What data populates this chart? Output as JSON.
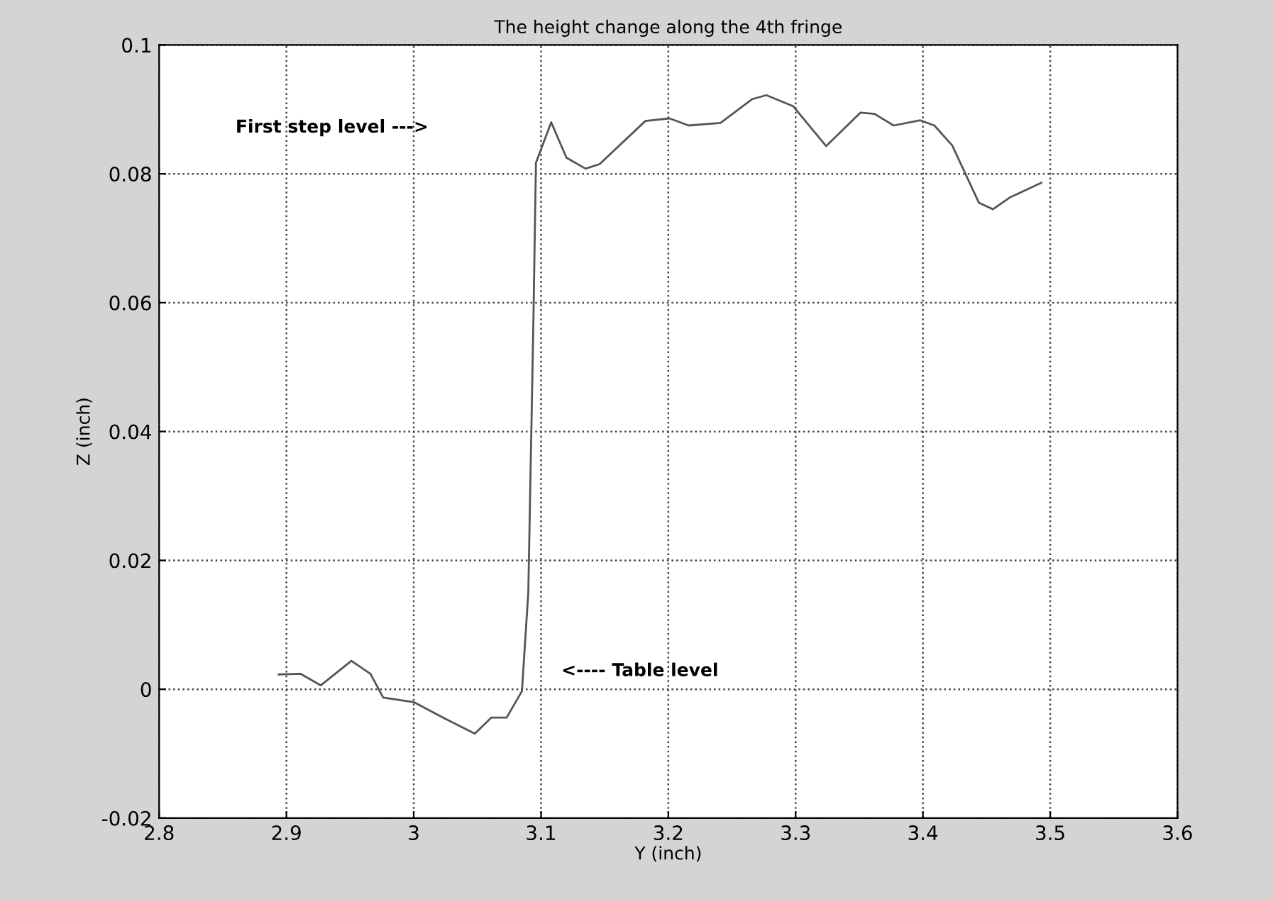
{
  "chart_data": {
    "type": "line",
    "title": "The height change along the 4th fringe",
    "xlabel": "Y (inch)",
    "ylabel": "Z (inch)",
    "x": [
      2.894,
      2.911,
      2.927,
      2.951,
      2.966,
      2.976,
      3.0,
      3.025,
      3.048,
      3.061,
      3.073,
      3.085,
      3.09,
      3.094,
      3.096,
      3.108,
      3.12,
      3.135,
      3.146,
      3.182,
      3.201,
      3.216,
      3.241,
      3.266,
      3.277,
      3.298,
      3.324,
      3.351,
      3.362,
      3.377,
      3.398,
      3.409,
      3.423,
      3.444,
      3.455,
      3.468,
      3.493
    ],
    "series": [
      {
        "color": "#555555",
        "values": [
          0.0023,
          0.0024,
          0.0006,
          0.0044,
          0.0024,
          -0.0013,
          -0.002,
          -0.0046,
          -0.0069,
          -0.0044,
          -0.0044,
          -0.0003,
          0.015,
          0.057,
          0.0817,
          0.088,
          0.0825,
          0.0808,
          0.0815,
          0.0882,
          0.0886,
          0.0875,
          0.0879,
          0.0916,
          0.0922,
          0.0905,
          0.0843,
          0.0895,
          0.0893,
          0.0875,
          0.0883,
          0.0875,
          0.0844,
          0.0755,
          0.0745,
          0.0763,
          0.0786
        ]
      }
    ],
    "xlim": [
      2.8,
      3.6
    ],
    "xticks": [
      2.8,
      2.9,
      3,
      3.1,
      3.2,
      3.3,
      3.4,
      3.5,
      3.6
    ],
    "ylim": [
      -0.02,
      0.1
    ],
    "yticks": [
      -0.02,
      0,
      0.02,
      0.04,
      0.06,
      0.08,
      0.1
    ],
    "grid": true,
    "line_style": "solid",
    "annotations": [
      "First step level --->",
      "<---- Table level"
    ]
  }
}
